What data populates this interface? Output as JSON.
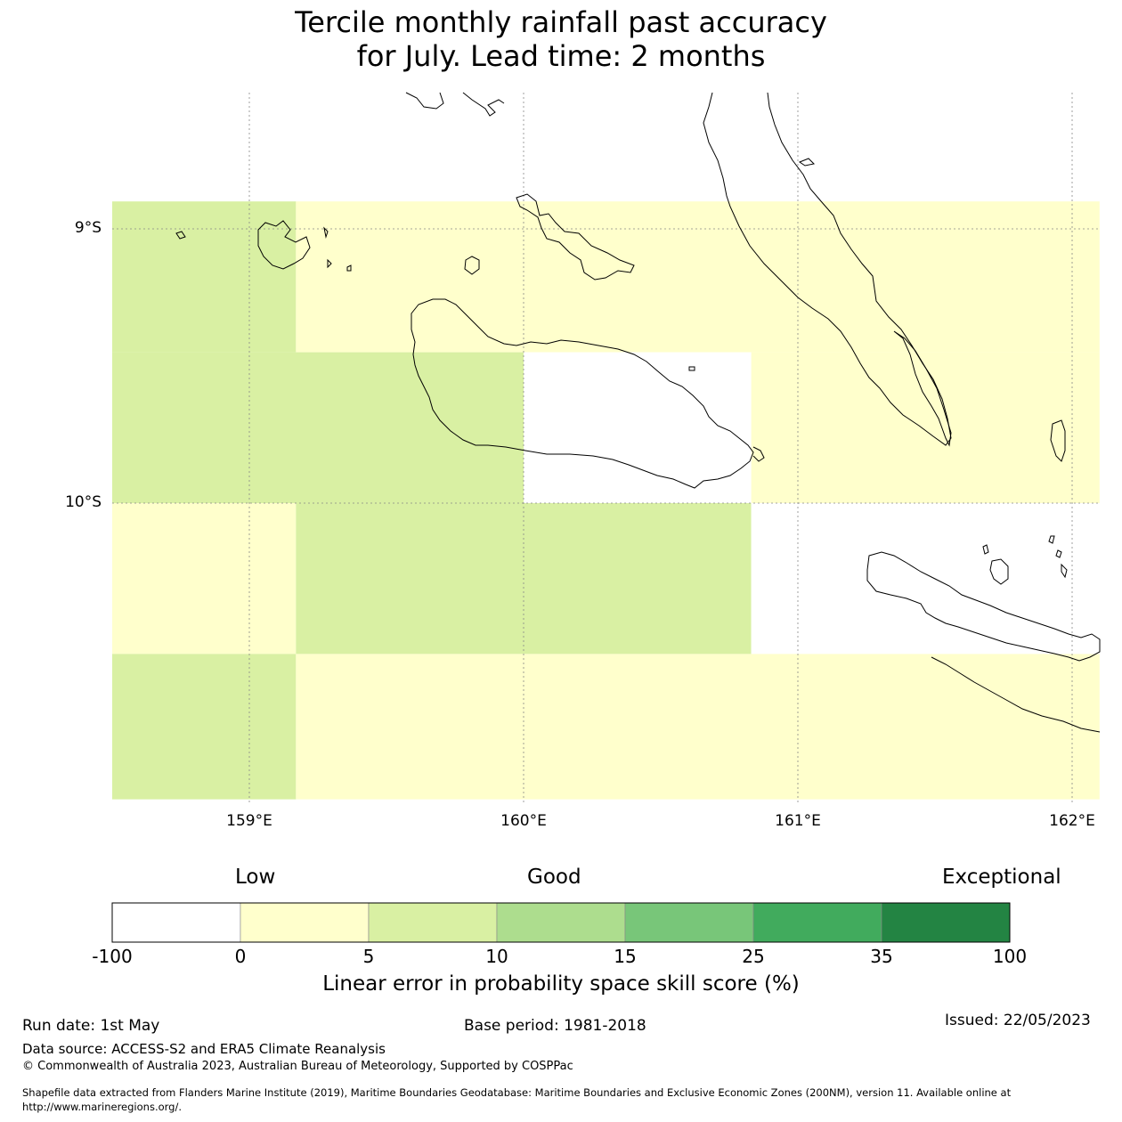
{
  "title": {
    "line1": "Tercile monthly rainfall past accuracy",
    "line2": "for July. Lead time: 2 months"
  },
  "map": {
    "lon_range": [
      158.5,
      162.1
    ],
    "lat_range": [
      -11.08,
      -8.3
    ],
    "lat_labels": [
      "9°S",
      "10°S"
    ],
    "lon_labels": [
      "159°E",
      "160°E",
      "161°E",
      "162°E"
    ],
    "grid_cells": [
      {
        "lon": [
          158.5,
          159.17
        ],
        "lat": [
          -9.45,
          -8.9
        ],
        "class": "5-10"
      },
      {
        "lon": [
          159.17,
          162.1
        ],
        "lat": [
          -9.45,
          -8.9
        ],
        "class": "0-5"
      },
      {
        "lon": [
          158.5,
          160.0
        ],
        "lat": [
          -10.0,
          -9.45
        ],
        "class": "5-10"
      },
      {
        "lon": [
          160.0,
          160.83
        ],
        "lat": [
          -10.0,
          -9.45
        ],
        "class": "-100-0"
      },
      {
        "lon": [
          160.83,
          162.1
        ],
        "lat": [
          -10.0,
          -9.45
        ],
        "class": "0-5"
      },
      {
        "lon": [
          158.5,
          159.17
        ],
        "lat": [
          -10.55,
          -10.0
        ],
        "class": "0-5"
      },
      {
        "lon": [
          159.17,
          160.83
        ],
        "lat": [
          -10.55,
          -10.0
        ],
        "class": "5-10"
      },
      {
        "lon": [
          160.83,
          162.1
        ],
        "lat": [
          -10.55,
          -10.0
        ],
        "class": "-100-0"
      },
      {
        "lon": [
          158.5,
          159.17
        ],
        "lat": [
          -11.08,
          -10.55
        ],
        "class": "5-10"
      },
      {
        "lon": [
          159.17,
          162.1
        ],
        "lat": [
          -11.08,
          -10.55
        ],
        "class": "0-5"
      }
    ]
  },
  "colorbar": {
    "words": [
      "Low",
      "Good",
      "Exceptional"
    ],
    "ticks": [
      "-100",
      "0",
      "5",
      "10",
      "15",
      "25",
      "35",
      "100"
    ],
    "colors": [
      "#ffffff",
      "#ffffcc",
      "#d9f0a3",
      "#addd8e",
      "#78c679",
      "#41ab5d",
      "#238443"
    ],
    "label": "Linear error in probability space skill score (%)"
  },
  "footer": {
    "run_date": "Run date: 1st May",
    "base_period": "Base period: 1981-2018",
    "issued": "Issued: 22/05/2023",
    "data_source": "Data source: ACCESS-S2 and ERA5 Climate Reanalysis",
    "copyright": "© Commonwealth of Australia 2023, Australian Bureau of Meteorology, Supported by COSPPac",
    "shapefile_line1": "Shapefile data extracted from Flanders Marine Institute (2019), Maritime Boundaries Geodatabase: Maritime Boundaries and Exclusive Economic Zones (200NM), version 11. Available online at",
    "shapefile_line2": "http://www.marineregions.org/."
  }
}
